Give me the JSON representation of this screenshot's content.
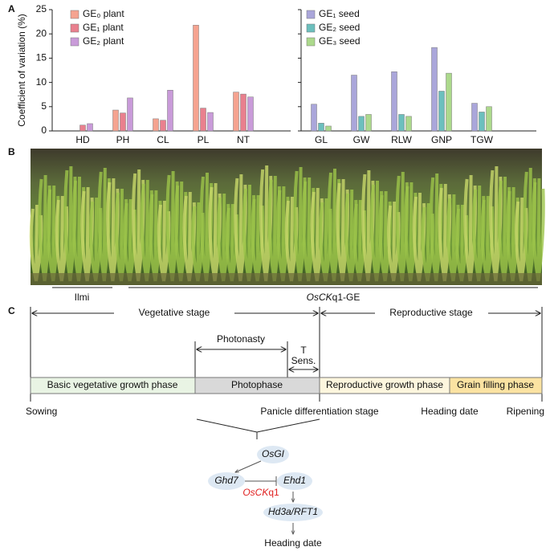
{
  "panels": [
    "A",
    "B",
    "C"
  ],
  "chart_data": [
    {
      "type": "bar",
      "ylabel": "Coefficient of variation (%)",
      "categories": [
        "HD",
        "PH",
        "CL",
        "PL",
        "NT"
      ],
      "series": [
        {
          "name": "GE₀ plant",
          "color": "#f5a390",
          "values": [
            null,
            4.3,
            2.5,
            21.8,
            8.0
          ]
        },
        {
          "name": "GE₁ plant",
          "color": "#e9808e",
          "values": [
            1.2,
            3.7,
            2.2,
            4.7,
            7.6
          ]
        },
        {
          "name": "GE₂ plant",
          "color": "#c99bd9",
          "values": [
            1.5,
            6.8,
            8.4,
            3.8,
            7.0
          ]
        }
      ],
      "ylim": [
        0,
        25
      ],
      "yticks": [
        0,
        5,
        10,
        15,
        20,
        25
      ]
    },
    {
      "type": "bar",
      "categories": [
        "GL",
        "GW",
        "RLW",
        "GNP",
        "TGW"
      ],
      "series": [
        {
          "name": "GE₁ seed",
          "color": "#aaa6da",
          "values": [
            5.5,
            11.5,
            12.2,
            17.2,
            5.7
          ]
        },
        {
          "name": "GE₂ seed",
          "color": "#6cbfbd",
          "values": [
            1.6,
            3.0,
            3.4,
            8.2,
            3.9
          ]
        },
        {
          "name": "GE₃ seed",
          "color": "#acd98c",
          "values": [
            1.0,
            3.4,
            3.0,
            11.9,
            5.0
          ]
        }
      ],
      "ylim": [
        0,
        25
      ],
      "yticks": [
        0,
        5,
        10,
        15,
        20,
        25
      ]
    }
  ],
  "photo": {
    "control": "Ilmi",
    "edited": [
      "OsCK",
      "q1-GE"
    ]
  },
  "diagram": {
    "stages": [
      "Vegetative stage",
      "Reproductive stage"
    ],
    "sub_periods": [
      "Photonasty",
      "T",
      "Sens."
    ],
    "phases": [
      "Basic vegetative growth phase",
      "Photophase",
      "Reproductive growth phase",
      "Grain filling phase"
    ],
    "milestones": [
      "Sowing",
      "Panicle differentiation stage",
      "Heading date",
      "Ripening"
    ],
    "nodes": [
      "OsGI",
      "Ghd7",
      "Ehd1",
      "Hd3a/RFT1",
      "Heading date"
    ],
    "regulator": [
      "OsCK",
      "q1"
    ]
  }
}
